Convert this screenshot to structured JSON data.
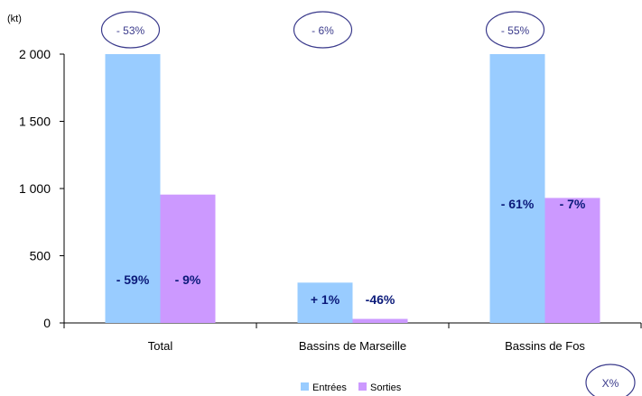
{
  "chart_data": {
    "type": "bar",
    "unit_label": "(kt)",
    "categories": [
      "Total",
      "Bassins de Marseille",
      "Bassins de Fos"
    ],
    "series": [
      {
        "name": "Entrées",
        "color": "#99ccff",
        "values": [
          2000,
          300,
          2000
        ]
      },
      {
        "name": "Sorties",
        "color": "#cc99ff",
        "values": [
          955,
          30,
          930
        ]
      }
    ],
    "ylim": [
      0,
      2000
    ],
    "yticks": [
      0,
      500,
      1000,
      1500,
      2000
    ],
    "ytick_labels": [
      "0",
      "500",
      "1 000",
      "1 500",
      "2 000"
    ],
    "bar_labels": [
      [
        "- 59%",
        "- 9%"
      ],
      [
        "+ 1%",
        "-46%"
      ],
      [
        "- 61%",
        "- 7%"
      ]
    ],
    "category_ovals": [
      "- 53%",
      "- 6%",
      "- 55%"
    ],
    "legend_oval": "X%",
    "legend": {
      "placement": "bottom-center"
    },
    "grid": false
  }
}
